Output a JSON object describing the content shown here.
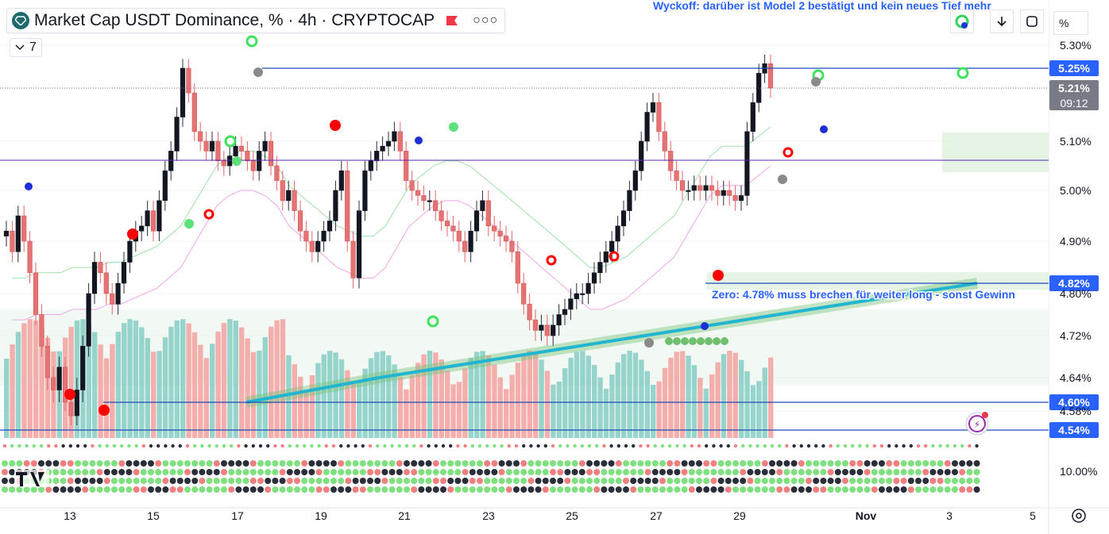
{
  "header": {
    "title": "Market Cap USDT Dominance, % · 4h · CRYPTOCAP",
    "indicator_count": "7",
    "scale_button": "%",
    "bell_badge": "⚡"
  },
  "annotations": {
    "top_note": "Wyckoff: darüber ist Model 2 bestätigt und kein neues Tief mehr",
    "mid_note": "Zero: 4.78% muss brechen für weiter long - sonst Gewinn"
  },
  "colors": {
    "up": "#26a69a",
    "down": "#ef5350",
    "line": "#1e4bb8",
    "ema": "#22b5d0",
    "label": "#2962ff",
    "grid": "#f0f3fa"
  },
  "chart_data": {
    "type": "line",
    "title": "Market Cap USDT Dominance, % · 4h · CRYPTOCAP",
    "xlabel": "",
    "ylabel": "",
    "x_ticks": [
      "13",
      "15",
      "17",
      "19",
      "21",
      "23",
      "25",
      "27",
      "29",
      "Nov",
      "3",
      "5"
    ],
    "y_ticks": [
      "5.30%",
      "5.10%",
      "5.00%",
      "4.90%",
      "4.80%",
      "4.72%",
      "4.64%",
      "4.58%",
      "10.00%"
    ],
    "ylim": [
      4.54,
      5.33
    ],
    "price_labels": [
      {
        "value": 5.25,
        "text": "5.25%"
      },
      {
        "value": 5.21,
        "text": "5.21%",
        "sub": "09:12"
      },
      {
        "value": 4.82,
        "text": "4.82%"
      },
      {
        "value": 4.6,
        "text": "4.60%"
      },
      {
        "value": 4.54,
        "text": "4.54%"
      }
    ],
    "closes": [
      4.92,
      4.88,
      4.95,
      4.9,
      4.84,
      4.76,
      4.7,
      4.64,
      4.62,
      4.66,
      4.6,
      4.57,
      4.62,
      4.7,
      4.8,
      4.86,
      4.84,
      4.8,
      4.78,
      4.82,
      4.86,
      4.9,
      4.92,
      4.93,
      4.96,
      4.92,
      4.98,
      5.04,
      5.08,
      5.15,
      5.25,
      5.2,
      5.12,
      5.1,
      5.08,
      5.1,
      5.06,
      5.05,
      5.07,
      5.09,
      5.08,
      5.06,
      5.04,
      5.08,
      5.1,
      5.05,
      5.02,
      4.98,
      5.0,
      4.96,
      4.92,
      4.9,
      4.88,
      4.9,
      4.92,
      4.94,
      5.0,
      5.04,
      4.9,
      4.83,
      4.96,
      5.04,
      5.06,
      5.08,
      5.09,
      5.1,
      5.12,
      5.08,
      5.02,
      5.0,
      4.99,
      4.98,
      4.98,
      4.96,
      4.94,
      4.93,
      4.92,
      4.9,
      4.88,
      4.92,
      4.96,
      4.98,
      4.93,
      4.92,
      4.91,
      4.9,
      4.88,
      4.82,
      4.78,
      4.75,
      4.73,
      4.74,
      4.72,
      4.74,
      4.76,
      4.77,
      4.79,
      4.8,
      4.8,
      4.82,
      4.84,
      4.86,
      4.88,
      4.9,
      4.93,
      4.96,
      5.0,
      5.04,
      5.1,
      5.16,
      5.18,
      5.12,
      5.08,
      5.04,
      5.02,
      5.0,
      5.0,
      5.01,
      5.0,
      5.01,
      5.0,
      4.99,
      5.0,
      4.99,
      4.98,
      4.99,
      5.12,
      5.18,
      5.24,
      5.26,
      5.21
    ],
    "series": [
      {
        "name": "",
        "values": [
          4.8,
          4.8,
          4.81,
          4.81,
          4.81,
          4.82,
          4.82,
          4.82,
          4.83,
          4.83,
          4.84,
          4.85,
          4.86,
          4.88,
          4.9,
          4.94,
          4.98,
          5.02,
          5.04,
          5.05,
          5.05,
          5.04,
          5.02,
          4.98,
          4.96,
          4.94,
          4.92,
          4.9,
          4.89,
          4.88,
          4.88,
          4.9,
          4.94,
          4.98,
          5.0,
          5.02,
          5.03,
          5.03,
          5.02,
          5.0,
          4.98,
          4.96,
          4.94,
          4.92,
          4.9,
          4.88,
          4.86,
          4.84,
          4.82,
          4.82,
          4.83,
          4.84,
          4.86,
          4.88,
          4.9,
          4.92,
          4.96,
          5.0,
          5.04,
          5.06,
          5.06,
          5.06,
          5.08,
          5.1
        ]
      },
      {
        "name": "",
        "values": [
          4.6,
          4.61,
          4.62,
          4.63,
          4.64,
          4.65,
          4.66,
          4.67,
          4.68,
          4.69,
          4.7,
          4.71,
          4.72,
          4.73,
          4.74,
          4.75,
          4.76,
          4.77,
          4.78,
          4.79,
          4.8,
          4.81,
          4.82
        ]
      }
    ]
  }
}
